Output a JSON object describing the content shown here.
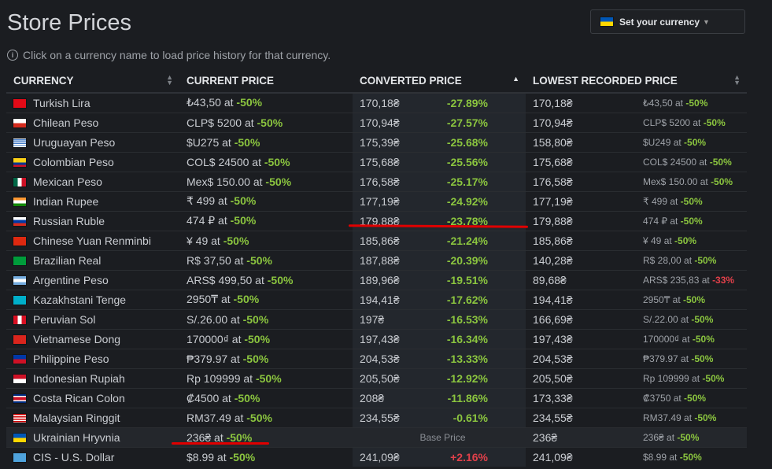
{
  "page": {
    "title": "Store Prices",
    "hint": "Click on a currency name to load price history for that currency."
  },
  "currency_button": {
    "label": "Set your currency",
    "flag": "ua",
    "caret_icon": "caret-down-icon"
  },
  "columns": [
    {
      "label": "CURRENCY"
    },
    {
      "label": "CURRENT PRICE"
    },
    {
      "label": "CONVERTED PRICE",
      "sorted": "ascending"
    },
    {
      "label": "LOWEST RECORDED PRICE"
    }
  ],
  "rows": [
    {
      "flag": "tr",
      "name": "Turkish Lira",
      "current": "₺43,50 at ",
      "current_disc": "-50%",
      "converted": "170,18₴",
      "pct": "-27.89%",
      "lowest": "170,18₴",
      "lowest_price": "₺43,50 at ",
      "lowest_disc": "-50%"
    },
    {
      "flag": "cl",
      "name": "Chilean Peso",
      "current": "CLP$ 5200 at ",
      "current_disc": "-50%",
      "converted": "170,94₴",
      "pct": "-27.57%",
      "lowest": "170,94₴",
      "lowest_price": "CLP$ 5200 at ",
      "lowest_disc": "-50%"
    },
    {
      "flag": "uy",
      "name": "Uruguayan Peso",
      "current": "$U275 at ",
      "current_disc": "-50%",
      "converted": "175,39₴",
      "pct": "-25.68%",
      "lowest": "158,80₴",
      "lowest_price": "$U249 at ",
      "lowest_disc": "-50%"
    },
    {
      "flag": "co",
      "name": "Colombian Peso",
      "current": "COL$ 24500 at ",
      "current_disc": "-50%",
      "converted": "175,68₴",
      "pct": "-25.56%",
      "lowest": "175,68₴",
      "lowest_price": "COL$ 24500 at ",
      "lowest_disc": "-50%"
    },
    {
      "flag": "mx",
      "name": "Mexican Peso",
      "current": "Mex$ 150.00 at ",
      "current_disc": "-50%",
      "converted": "176,58₴",
      "pct": "-25.17%",
      "lowest": "176,58₴",
      "lowest_price": "Mex$ 150.00 at ",
      "lowest_disc": "-50%"
    },
    {
      "flag": "in",
      "name": "Indian Rupee",
      "current": "₹ 499 at ",
      "current_disc": "-50%",
      "converted": "177,19₴",
      "pct": "-24.92%",
      "lowest": "177,19₴",
      "lowest_price": "₹ 499 at ",
      "lowest_disc": "-50%"
    },
    {
      "flag": "ru",
      "name": "Russian Ruble",
      "current": "474 ₽ at ",
      "current_disc": "-50%",
      "converted": "179,88₴",
      "pct": "-23.78%",
      "lowest": "179,88₴",
      "lowest_price": "474 ₽ at ",
      "lowest_disc": "-50%"
    },
    {
      "flag": "cn",
      "name": "Chinese Yuan Renminbi",
      "current": "¥ 49 at ",
      "current_disc": "-50%",
      "converted": "185,86₴",
      "pct": "-21.24%",
      "lowest": "185,86₴",
      "lowest_price": "¥ 49 at ",
      "lowest_disc": "-50%"
    },
    {
      "flag": "br",
      "name": "Brazilian Real",
      "current": "R$ 37,50 at ",
      "current_disc": "-50%",
      "converted": "187,88₴",
      "pct": "-20.39%",
      "lowest": "140,28₴",
      "lowest_price": "R$ 28,00 at ",
      "lowest_disc": "-50%"
    },
    {
      "flag": "ar",
      "name": "Argentine Peso",
      "current": "ARS$ 499,50 at ",
      "current_disc": "-50%",
      "converted": "189,96₴",
      "pct": "-19.51%",
      "lowest": "89,68₴",
      "lowest_price": "ARS$ 235,83 at ",
      "lowest_disc": "-33%",
      "lowest_disc_color": "red"
    },
    {
      "flag": "kz",
      "name": "Kazakhstani Tenge",
      "current": "2950₸ at ",
      "current_disc": "-50%",
      "converted": "194,41₴",
      "pct": "-17.62%",
      "lowest": "194,41₴",
      "lowest_price": "2950₸ at ",
      "lowest_disc": "-50%"
    },
    {
      "flag": "pe",
      "name": "Peruvian Sol",
      "current": "S/.26.00 at ",
      "current_disc": "-50%",
      "converted": "197₴",
      "pct": "-16.53%",
      "lowest": "166,69₴",
      "lowest_price": "S/.22.00 at ",
      "lowest_disc": "-50%"
    },
    {
      "flag": "vn",
      "name": "Vietnamese Dong",
      "current": "170000₫ at ",
      "current_disc": "-50%",
      "converted": "197,43₴",
      "pct": "-16.34%",
      "lowest": "197,43₴",
      "lowest_price": "170000₫ at ",
      "lowest_disc": "-50%"
    },
    {
      "flag": "ph",
      "name": "Philippine Peso",
      "current": "₱379.97 at ",
      "current_disc": "-50%",
      "converted": "204,53₴",
      "pct": "-13.33%",
      "lowest": "204,53₴",
      "lowest_price": "₱379.97 at ",
      "lowest_disc": "-50%"
    },
    {
      "flag": "id",
      "name": "Indonesian Rupiah",
      "current": "Rp 109999 at ",
      "current_disc": "-50%",
      "converted": "205,50₴",
      "pct": "-12.92%",
      "lowest": "205,50₴",
      "lowest_price": "Rp 109999 at ",
      "lowest_disc": "-50%"
    },
    {
      "flag": "cr",
      "name": "Costa Rican Colon",
      "current": "₡4500 at ",
      "current_disc": "-50%",
      "converted": "208₴",
      "pct": "-11.86%",
      "lowest": "173,33₴",
      "lowest_price": "₡3750 at ",
      "lowest_disc": "-50%"
    },
    {
      "flag": "my",
      "name": "Malaysian Ringgit",
      "current": "RM37.49 at ",
      "current_disc": "-50%",
      "converted": "234,55₴",
      "pct": "-0.61%",
      "lowest": "234,55₴",
      "lowest_price": "RM37.49 at ",
      "lowest_disc": "-50%"
    },
    {
      "flag": "ua",
      "name": "Ukrainian Hryvnia",
      "current": "236₴ at ",
      "current_disc": "-50%",
      "base": "Base Price",
      "lowest": "236₴",
      "lowest_price": "236₴ at ",
      "lowest_disc": "-50%"
    },
    {
      "flag": "cis",
      "name": "CIS - U.S. Dollar",
      "current": "$8.99 at ",
      "current_disc": "-50%",
      "converted": "241,09₴",
      "pct": "+2.16%",
      "pct_color": "red",
      "lowest": "241,09₴",
      "lowest_price": "$8.99 at ",
      "lowest_disc": "-50%"
    }
  ],
  "colors": {
    "discount_green": "#8bc53f",
    "red": "#e2404a",
    "annotation": "#e00000"
  }
}
